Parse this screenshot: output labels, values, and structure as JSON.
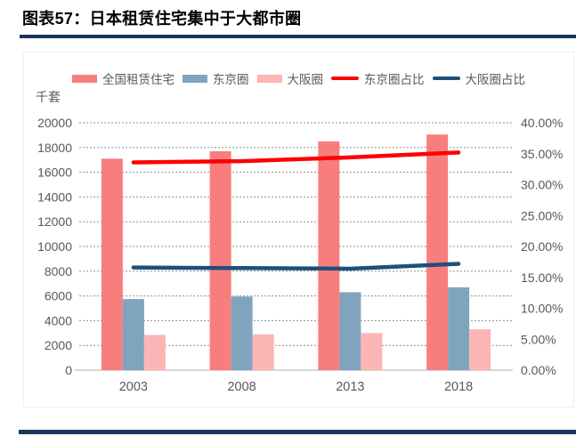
{
  "header": {
    "title": "图表57：日本租赁住宅集中于大都市圈"
  },
  "theme": {
    "rule_color": "#17375d",
    "axis_text_color": "#595959",
    "gridline_color": "#8f8f8f",
    "axis_line_color": "#c9c9c9"
  },
  "chart_data": {
    "type": "bar",
    "subtype": "clustered-bars-with-lines-combo",
    "unit_label": "千套",
    "categories": [
      "2003",
      "2008",
      "2013",
      "2018"
    ],
    "bar_series": [
      {
        "key": "national-rental",
        "name": "全国租赁住宅",
        "color": "#f87e7e",
        "values": [
          17100,
          17700,
          18500,
          19050
        ]
      },
      {
        "key": "tokyo-area",
        "name": "东京圈",
        "color": "#80a3be",
        "values": [
          5750,
          5950,
          6300,
          6700
        ]
      },
      {
        "key": "osaka-area",
        "name": "大阪圈",
        "color": "#fcb5b5",
        "values": [
          2850,
          2900,
          3000,
          3300
        ]
      }
    ],
    "line_series": [
      {
        "key": "tokyo-share",
        "name": "东京圈占比",
        "color": "#fe0000",
        "values": [
          33.6,
          33.8,
          34.4,
          35.2
        ]
      },
      {
        "key": "osaka-share",
        "name": "大阪圈占比",
        "color": "#1f4e79",
        "values": [
          16.6,
          16.5,
          16.4,
          17.2
        ]
      }
    ],
    "left_axis": {
      "min": 0,
      "max": 20000,
      "step": 2000,
      "labels": [
        "0",
        "2000",
        "4000",
        "6000",
        "8000",
        "10000",
        "12000",
        "14000",
        "16000",
        "18000",
        "20000"
      ]
    },
    "right_axis": {
      "min": 0,
      "max": 40,
      "step": 5,
      "labels": [
        "0.00%",
        "5.00%",
        "10.00%",
        "15.00%",
        "20.00%",
        "25.00%",
        "30.00%",
        "35.00%",
        "40.00%"
      ]
    },
    "grid": "horizontal-dashed",
    "legend_position": "top"
  }
}
